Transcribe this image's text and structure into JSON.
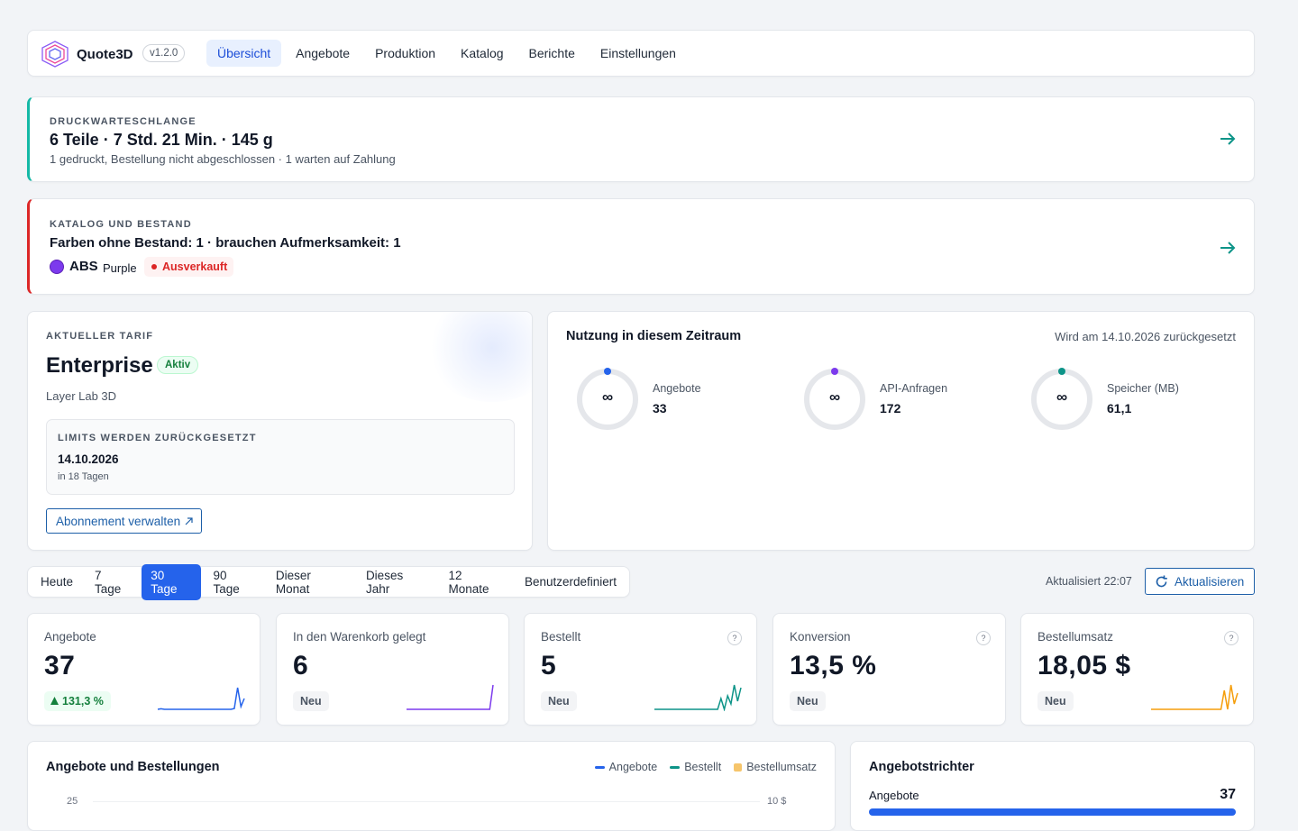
{
  "nav": {
    "brand": "Quote3D",
    "version": "v1.2.0",
    "items": [
      "Übersicht",
      "Angebote",
      "Produktion",
      "Katalog",
      "Berichte",
      "Einstellungen"
    ],
    "active": 0
  },
  "queue": {
    "label": "DRUCKWARTESCHLANGE",
    "title": "6 Teile · 7 Std. 21 Min. · 145 g",
    "subtitle": "1 gedruckt, Bestellung nicht abgeschlossen · 1 warten auf Zahlung"
  },
  "catalog": {
    "label": "KATALOG UND BESTAND",
    "title": "Farben ohne Bestand: 1 · brauchen Aufmerksamkeit: 1",
    "item": {
      "material": "ABS",
      "color_name": "Purple",
      "color": "#7c3aed",
      "status": "Ausverkauft"
    }
  },
  "plan": {
    "label": "AKTUELLER TARIF",
    "name": "Enterprise",
    "badge": "Aktiv",
    "company": "Layer Lab 3D",
    "reset_label": "LIMITS WERDEN ZURÜCKGESETZT",
    "reset_date": "14.10.2026",
    "reset_in": "in 18 Tagen",
    "button": "Abonnement verwalten"
  },
  "usage": {
    "title": "Nutzung in diesem Zeitraum",
    "reset_note": "Wird am 14.10.2026 zurückgesetzt",
    "meters": [
      {
        "symbol": "∞",
        "label": "Angebote",
        "value": "33",
        "color": "#2563eb"
      },
      {
        "symbol": "∞",
        "label": "API-Anfragen",
        "value": "172",
        "color": "#7c3aed"
      },
      {
        "symbol": "∞",
        "label": "Speicher (MB)",
        "value": "61,1",
        "color": "#0d9488"
      }
    ]
  },
  "range": {
    "options": [
      "Heute",
      "7 Tage",
      "30 Tage",
      "90 Tage",
      "Dieser Monat",
      "Dieses Jahr",
      "12 Monate",
      "Benutzerdefiniert"
    ],
    "active": 2,
    "updated": "Aktualisiert 22:07",
    "refresh": "Aktualisieren"
  },
  "kpis": [
    {
      "label": "Angebote",
      "value": "37",
      "delta": "131,3 %",
      "positive": true,
      "color": "#2563eb",
      "trend": [
        0,
        0.2,
        0,
        0,
        0,
        0,
        0,
        0,
        0,
        0,
        0,
        0,
        0,
        0,
        0,
        0,
        0,
        0,
        0,
        0,
        0,
        0,
        0,
        0.3,
        8,
        1,
        4
      ]
    },
    {
      "label": "In den Warenkorb gelegt",
      "value": "6",
      "delta": "Neu",
      "color": "#7c3aed",
      "trend": [
        0,
        0,
        0,
        0,
        0,
        0,
        0,
        0,
        0,
        0,
        0,
        0,
        0,
        0,
        0,
        0,
        0,
        0,
        0,
        0,
        0,
        0,
        0,
        0,
        0,
        0,
        9
      ]
    },
    {
      "label": "Bestellt",
      "value": "5",
      "delta": "Neu",
      "help": "?",
      "color": "#0d9488",
      "trend": [
        0,
        0,
        0,
        0,
        0,
        0,
        0,
        0,
        0,
        0,
        0,
        0,
        0,
        0,
        0,
        0,
        0,
        0,
        0,
        0,
        4,
        0,
        5,
        2,
        9,
        3,
        8
      ]
    },
    {
      "label": "Konversion",
      "value": "13,5 %",
      "delta": "Neu",
      "help": "?"
    },
    {
      "label": "Bestellumsatz",
      "value": "18,05 $",
      "delta": "Neu",
      "help": "?",
      "color": "#f59e0b",
      "trend": [
        0,
        0,
        0,
        0,
        0,
        0,
        0,
        0,
        0,
        0,
        0,
        0,
        0,
        0,
        0,
        0,
        0,
        0,
        0,
        0,
        0,
        0,
        7,
        0,
        9,
        2,
        6
      ]
    }
  ],
  "chart": {
    "title": "Angebote und Bestellungen",
    "legend": [
      {
        "name": "Angebote",
        "color": "#2563eb"
      },
      {
        "name": "Bestellt",
        "color": "#0d9488"
      },
      {
        "name": "Bestellumsatz",
        "color": "#f6c56b"
      }
    ],
    "ytick_left": "25",
    "ytick_right": "10 $"
  },
  "funnel": {
    "title": "Angebotstrichter",
    "rows": [
      {
        "label": "Angebote",
        "value": "37",
        "color": "#2563eb"
      }
    ]
  }
}
